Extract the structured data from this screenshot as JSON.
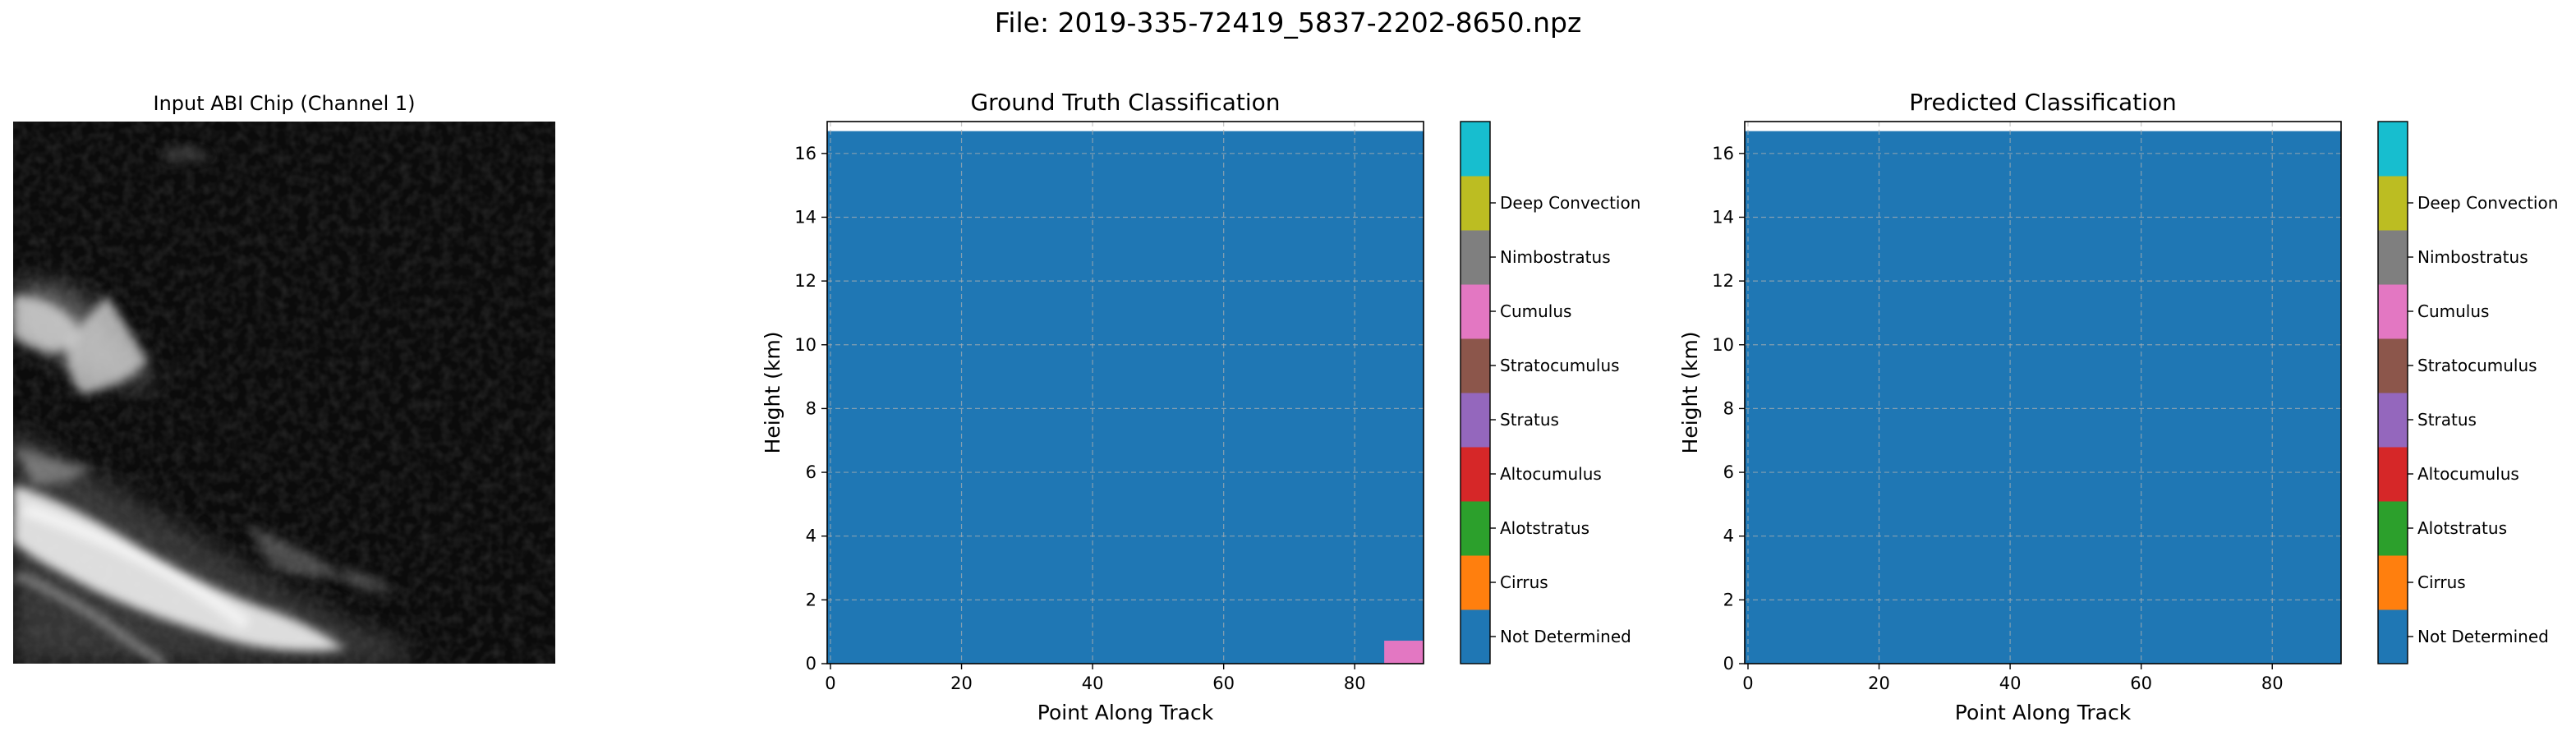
{
  "figure": {
    "title": "File: 2019-335-72419_5837-2202-8650.npz"
  },
  "input_panel": {
    "title": "Input ABI Chip (Channel 1)",
    "image_description": "grayscale satellite image, mostly dark with bright cloud streaks in lower-left"
  },
  "colors": {
    "Not Determined": "#1f77b4",
    "Cirrus": "#ff7f0e",
    "Alotstratus": "#2ca02c",
    "Altocumulus": "#d62728",
    "Stratus": "#9467bd",
    "Stratocumulus": "#8c564b",
    "Cumulus": "#e377c2",
    "Nimbostratus": "#7f7f7f",
    "Deep Convection": "#bcbd22",
    "top": "#17becf"
  },
  "chart_data": [
    {
      "type": "heatmap",
      "title": "Ground Truth Classification",
      "xlabel": "Point Along Track",
      "ylabel": "Height (km)",
      "xlim": [
        -0.5,
        90.5
      ],
      "ylim": [
        0,
        17
      ],
      "xticks": [
        0,
        20,
        40,
        60,
        80
      ],
      "yticks": [
        0,
        2,
        4,
        6,
        8,
        10,
        12,
        14,
        16
      ],
      "grid": true,
      "background_class": "Not Determined",
      "data_extent": {
        "x": [
          -0.5,
          90.5
        ],
        "y": [
          0,
          16.7
        ]
      },
      "patches": [
        {
          "class": "Cumulus",
          "x": [
            84.5,
            90.5
          ],
          "y": [
            0,
            0.72
          ]
        }
      ],
      "colorbar": {
        "labels": [
          "Not Determined",
          "Cirrus",
          "Alotstratus",
          "Altocumulus",
          "Stratus",
          "Stratocumulus",
          "Cumulus",
          "Nimbostratus",
          "Deep Convection"
        ],
        "colors": [
          "#1f77b4",
          "#ff7f0e",
          "#2ca02c",
          "#d62728",
          "#9467bd",
          "#8c564b",
          "#e377c2",
          "#7f7f7f",
          "#bcbd22",
          "#17becf"
        ]
      }
    },
    {
      "type": "heatmap",
      "title": "Predicted Classification",
      "xlabel": "Point Along Track",
      "ylabel": "Height (km)",
      "xlim": [
        -0.5,
        90.5
      ],
      "ylim": [
        0,
        17
      ],
      "xticks": [
        0,
        20,
        40,
        60,
        80
      ],
      "yticks": [
        0,
        2,
        4,
        6,
        8,
        10,
        12,
        14,
        16
      ],
      "grid": true,
      "background_class": "Not Determined",
      "data_extent": {
        "x": [
          -0.5,
          90.5
        ],
        "y": [
          0,
          16.7
        ]
      },
      "patches": [],
      "colorbar": {
        "labels": [
          "Not Determined",
          "Cirrus",
          "Alotstratus",
          "Altocumulus",
          "Stratus",
          "Stratocumulus",
          "Cumulus",
          "Nimbostratus",
          "Deep Convection"
        ],
        "colors": [
          "#1f77b4",
          "#ff7f0e",
          "#2ca02c",
          "#d62728",
          "#9467bd",
          "#8c564b",
          "#e377c2",
          "#7f7f7f",
          "#bcbd22",
          "#17becf"
        ]
      }
    }
  ]
}
